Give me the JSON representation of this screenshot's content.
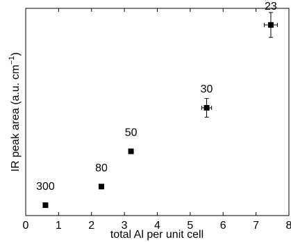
{
  "chart_data": {
    "type": "scatter",
    "title": "",
    "xlabel": "total Al per unit cell",
    "ylabel": "IR peak area (a.u. cm",
    "ylabel_sup": "−1",
    "ylabel_close": ")",
    "xlim": [
      0,
      8
    ],
    "ylim": [
      0,
      1
    ],
    "x_ticks": [
      "0",
      "1",
      "2",
      "3",
      "4",
      "5",
      "6",
      "7",
      "8"
    ],
    "y_ticks_shown": false,
    "grid": false,
    "legend": "none",
    "marker": "square",
    "marker_color": "#000000",
    "points": [
      {
        "x": 0.6,
        "y": 0.05,
        "label": "300",
        "xerr": 0.0,
        "yerr": 0.0
      },
      {
        "x": 2.3,
        "y": 0.14,
        "label": "80",
        "xerr": 0.0,
        "yerr": 0.0
      },
      {
        "x": 3.2,
        "y": 0.31,
        "label": "50",
        "xerr": 0.0,
        "yerr": 0.0
      },
      {
        "x": 5.5,
        "y": 0.52,
        "label": "30",
        "xerr": 0.15,
        "yerr": 0.045
      },
      {
        "x": 7.45,
        "y": 0.92,
        "label": "23",
        "xerr": 0.2,
        "yerr": 0.06
      }
    ]
  }
}
